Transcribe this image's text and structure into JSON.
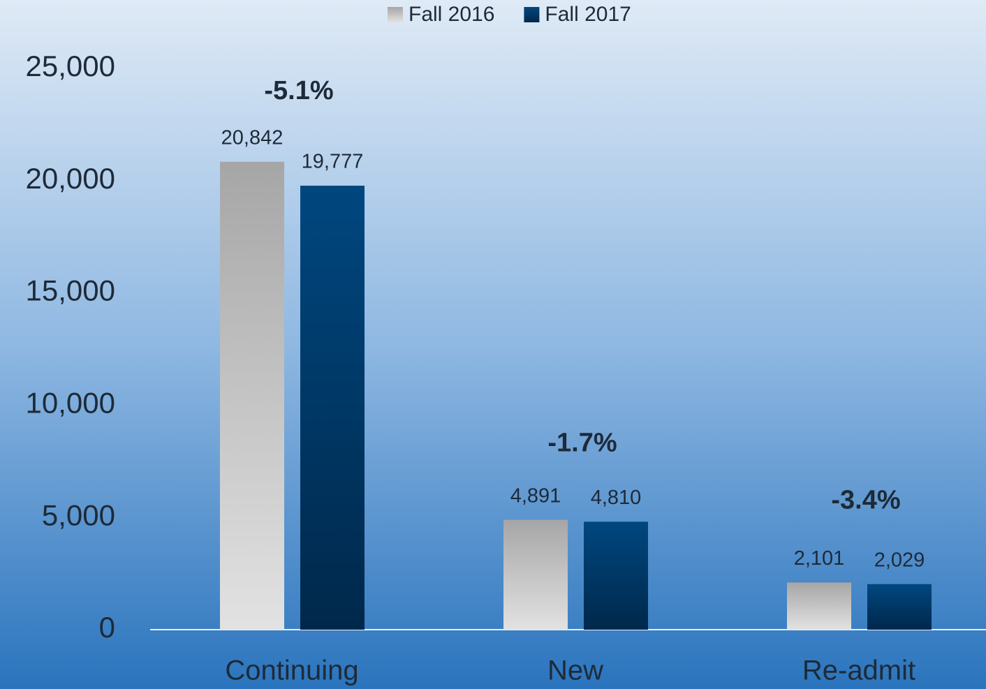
{
  "chart_data": {
    "type": "bar",
    "categories": [
      "Continuing",
      "New",
      "Re-admit"
    ],
    "series": [
      {
        "name": "Fall 2016",
        "color": "#a6a6a6",
        "values": [
          20842,
          4891,
          2101
        ],
        "value_labels": [
          "20,842",
          "4,891",
          "2,101"
        ]
      },
      {
        "name": "Fall 2017",
        "color": "#00477f",
        "values": [
          19777,
          4810,
          2029
        ],
        "value_labels": [
          "19,777",
          "4,810",
          "2,029"
        ]
      }
    ],
    "annotations": [
      "-5.1%",
      "-1.7%",
      "-3.4%"
    ],
    "ylim": [
      0,
      25000
    ],
    "yticks": [
      0,
      {
        "value": 5000,
        "label": "5,000"
      },
      {
        "value": 10000,
        "label": "10,000"
      },
      {
        "value": 15000,
        "label": "15,000"
      },
      {
        "value": 20000,
        "label": "20,000"
      },
      {
        "value": 25000,
        "label": "25,000"
      }
    ],
    "legend": "top"
  }
}
